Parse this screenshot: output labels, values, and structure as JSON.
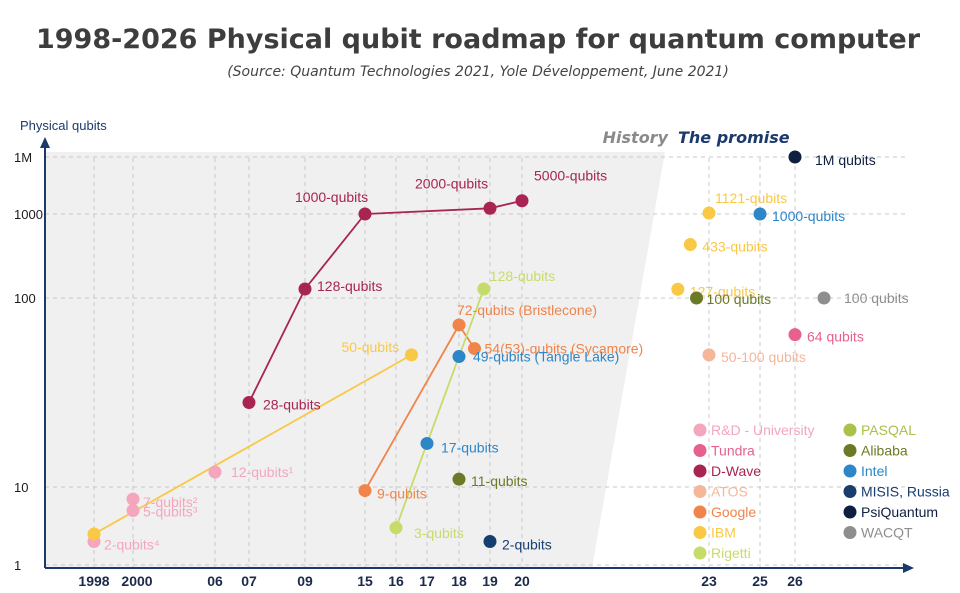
{
  "chart_data": {
    "type": "scatter",
    "title": "1998-2026 Physical qubit roadmap for quantum computer",
    "subtitle": "(Source: Quantum Technologies 2021, Yole Développement, June 2021)",
    "ylabel": "Physical qubits",
    "y_scale": "log",
    "ylim": [
      1,
      1000000
    ],
    "y_ticks": [
      {
        "value": 1,
        "label": "1"
      },
      {
        "value": 10,
        "label": "10"
      },
      {
        "value": 100,
        "label": "100"
      },
      {
        "value": 1000,
        "label": "1000"
      },
      {
        "value": 1000000,
        "label": "1M"
      }
    ],
    "x_ticks": [
      {
        "value": 1998,
        "label": "1998"
      },
      {
        "value": 2000,
        "label": "2000"
      },
      {
        "value": 2006,
        "label": "06"
      },
      {
        "value": 2007,
        "label": "07"
      },
      {
        "value": 2009,
        "label": "09"
      },
      {
        "value": 2015,
        "label": "15"
      },
      {
        "value": 2016,
        "label": "16"
      },
      {
        "value": 2017,
        "label": "17"
      },
      {
        "value": 2018,
        "label": "18"
      },
      {
        "value": 2019,
        "label": "19"
      },
      {
        "value": 2020,
        "label": "20"
      },
      {
        "value": 2023,
        "label": "23"
      },
      {
        "value": 2025,
        "label": "25"
      },
      {
        "value": 2026,
        "label": "26"
      }
    ],
    "section_labels": {
      "history": "History",
      "promise": "The promise"
    },
    "colors": {
      "R&D - University": "#f4a6bd",
      "Tundra": "#e8608c",
      "D-Wave": "#a82452",
      "ATOS": "#f5b79a",
      "Google": "#f0844a",
      "IBM": "#f9c845",
      "Rigetti": "#c6dc6a",
      "PASQAL": "#a8c24a",
      "Alibaba": "#6b7a26",
      "Intel": "#2d86c8",
      "MISIS, Russia": "#173e6e",
      "PsiQuantum": "#0e1f3f",
      "WACQT": "#8e8e8e"
    },
    "series": [
      {
        "name": "R&D - University",
        "points": [
          {
            "x": 1998,
            "y": 2,
            "label": "2-qubits⁴"
          },
          {
            "x": 2000,
            "y": 5,
            "label": "5-qubits³"
          },
          {
            "x": 2000,
            "y": 7,
            "label": "7-qubits²"
          },
          {
            "x": 2006,
            "y": 12,
            "label": "12-qubits¹"
          }
        ]
      },
      {
        "name": "D-Wave",
        "connected": true,
        "points": [
          {
            "x": 2007,
            "y": 28,
            "label": "28-qubits"
          },
          {
            "x": 2009,
            "y": 128,
            "label": "128-qubits"
          },
          {
            "x": 2015,
            "y": 1000,
            "label": "1000-qubits"
          },
          {
            "x": 2019,
            "y": 2000,
            "label": "2000-qubits"
          },
          {
            "x": 2020,
            "y": 5000,
            "label": "5000-qubits"
          }
        ]
      },
      {
        "name": "IBM",
        "connected": true,
        "points": [
          {
            "x": 1998,
            "y": 2.5,
            "label": ""
          },
          {
            "x": 2016.5,
            "y": 50,
            "label": "50-qubits"
          }
        ]
      },
      {
        "name": "Google",
        "connected": true,
        "points": [
          {
            "x": 2015,
            "y": 9,
            "label": "9-qubits"
          },
          {
            "x": 2018,
            "y": 72,
            "label": "72-qubits (Bristlecone)"
          },
          {
            "x": 2018.5,
            "y": 54,
            "label": "54(53)-qubits (Sycamore)"
          }
        ]
      },
      {
        "name": "Intel",
        "points": [
          {
            "x": 2017,
            "y": 17,
            "label": "17-qubits"
          },
          {
            "x": 2018,
            "y": 49,
            "label": "49-qubits (Tangle Lake)"
          }
        ]
      },
      {
        "name": "Rigetti",
        "connected": true,
        "points": [
          {
            "x": 2016,
            "y": 3,
            "label": "3-qubits"
          },
          {
            "x": 2018.8,
            "y": 128,
            "label": "128-qubits"
          }
        ]
      },
      {
        "name": "Alibaba",
        "points": [
          {
            "x": 2018,
            "y": 11,
            "label": "11-qubits"
          }
        ]
      },
      {
        "name": "MISIS, Russia",
        "points": [
          {
            "x": 2019,
            "y": 2,
            "label": "2-qubits"
          }
        ]
      },
      {
        "name": "IBM roadmap",
        "points": [
          {
            "x": 2022.5,
            "y": 127,
            "label": "127-qubits"
          },
          {
            "x": 2022.7,
            "y": 433,
            "label": "433-qubits"
          },
          {
            "x": 2023,
            "y": 1121,
            "label": "1121-qubits"
          }
        ]
      },
      {
        "name": "Intel roadmap",
        "points": [
          {
            "x": 2025,
            "y": 1000,
            "label": "1000-qubits"
          }
        ]
      },
      {
        "name": "PsiQuantum",
        "points": [
          {
            "x": 2026,
            "y": 1000000,
            "label": "1M qubits"
          }
        ]
      },
      {
        "name": "Alibaba roadmap",
        "points": [
          {
            "x": 2022.8,
            "y": 100,
            "label": "100 qubits"
          }
        ]
      },
      {
        "name": "WACQT",
        "points": [
          {
            "x": 2027,
            "y": 100,
            "label": "100 qubits"
          }
        ]
      },
      {
        "name": "Tundra",
        "points": [
          {
            "x": 2026,
            "y": 64,
            "label": "64 qubits"
          }
        ]
      },
      {
        "name": "ATOS",
        "points": [
          {
            "x": 2023,
            "y": 50,
            "label": "50-100 qubits"
          }
        ]
      }
    ],
    "legend": [
      [
        "R&D - University",
        "Tundra",
        "D-Wave",
        "ATOS",
        "Google",
        "IBM",
        "Rigetti"
      ],
      [
        "PASQAL",
        "Alibaba",
        "Intel",
        "MISIS, Russia",
        "PsiQuantum",
        "WACQT"
      ]
    ]
  }
}
